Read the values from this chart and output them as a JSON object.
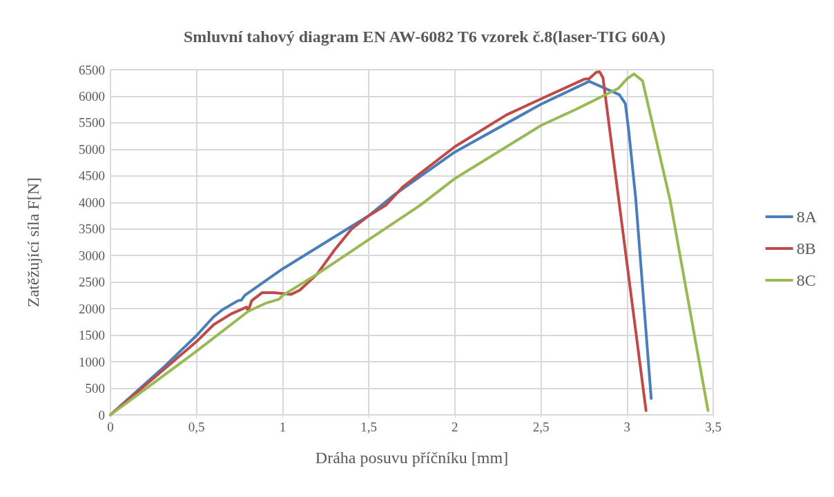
{
  "chart_data": {
    "type": "line",
    "title": "Smluvní tahový diagram EN AW-6082 T6 vzorek č.8(laser-TIG 60A)",
    "xlabel": "Dráha posuvu příčníku [mm]",
    "ylabel": "Zatěžující síla F[N]",
    "xlim": [
      0,
      3.5
    ],
    "xticks": [
      {
        "value": 0,
        "label": "0"
      },
      {
        "value": 0.5,
        "label": "0,5"
      },
      {
        "value": 1,
        "label": "1"
      },
      {
        "value": 1.5,
        "label": "1,5"
      },
      {
        "value": 2,
        "label": "2"
      },
      {
        "value": 2.5,
        "label": "2,5"
      },
      {
        "value": 3,
        "label": "3"
      },
      {
        "value": 3.5,
        "label": "3,5"
      }
    ],
    "ylim": [
      0,
      6500
    ],
    "yticks": [
      0,
      500,
      1000,
      1500,
      2000,
      2500,
      3000,
      3500,
      4000,
      4500,
      5000,
      5500,
      6000,
      6500
    ],
    "grid": true,
    "legend": "right",
    "marker": "none",
    "line_style": "solid",
    "series": [
      {
        "name": "8A",
        "color": "#4a7ebb",
        "x": [
          0,
          0.3,
          0.5,
          0.6,
          0.65,
          0.74,
          0.76,
          0.78,
          1.0,
          1.5,
          1.65,
          2.0,
          2.5,
          2.78,
          2.955,
          2.99,
          3.01,
          3.05,
          3.14
        ],
        "values": [
          0,
          870,
          1495,
          1850,
          1980,
          2150,
          2160,
          2250,
          2750,
          3750,
          4150,
          4950,
          5850,
          6280,
          6030,
          5860,
          5340,
          4080,
          310
        ]
      },
      {
        "name": "8B",
        "color": "#be4b48",
        "x": [
          0,
          0.5,
          0.6,
          0.7,
          0.79,
          0.8,
          0.82,
          0.88,
          0.95,
          1.05,
          1.1,
          1.2,
          1.3,
          1.4,
          1.5,
          1.6,
          1.7,
          2.0,
          2.3,
          2.5,
          2.75,
          2.78,
          2.82,
          2.84,
          2.86,
          3.11
        ],
        "values": [
          0,
          1380,
          1700,
          1900,
          2030,
          1960,
          2150,
          2300,
          2300,
          2270,
          2350,
          2650,
          3100,
          3500,
          3750,
          3950,
          4300,
          5050,
          5650,
          5950,
          6320,
          6330,
          6450,
          6460,
          6350,
          80
        ]
      },
      {
        "name": "8C",
        "color": "#98b954",
        "x": [
          0,
          0.5,
          0.8,
          0.9,
          0.98,
          1.0,
          1.2,
          1.5,
          1.8,
          2.0,
          2.5,
          2.7,
          2.95,
          3.0,
          3.04,
          3.09,
          3.25,
          3.47
        ],
        "values": [
          0,
          1200,
          1950,
          2100,
          2180,
          2250,
          2650,
          3300,
          3950,
          4450,
          5450,
          5750,
          6150,
          6330,
          6420,
          6290,
          4040,
          80
        ]
      }
    ]
  }
}
